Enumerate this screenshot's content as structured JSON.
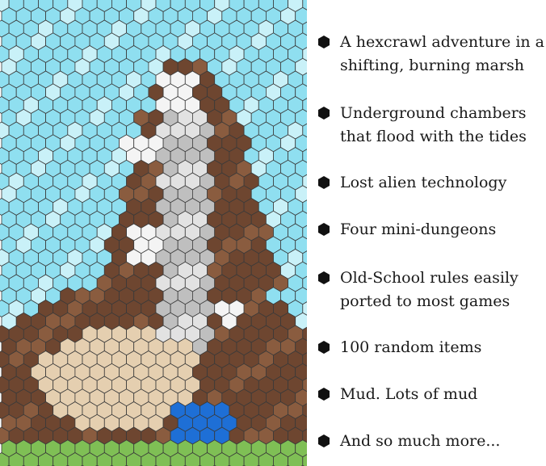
{
  "map": {
    "title": "",
    "colors": {
      "water": "#8fdff0",
      "water_light": "#c9f1f8",
      "mud": "#6e4630",
      "mud_light": "#8a5c3f",
      "rock": "#bfbfbf",
      "rock_light": "#e2e2e2",
      "white": "#f4f4f4",
      "sand": "#e5cfb0",
      "blue": "#1e6fd6",
      "grass": "#7fbf55",
      "outline": "#3a3a3a"
    },
    "icons": [
      "hex-grid-map-icon",
      "tide-pool-icon",
      "sand-dune-icon"
    ]
  },
  "features": [
    {
      "lines": [
        "A hexcrawl adventure in a",
        "shifting, burning marsh"
      ]
    },
    {
      "lines": [
        "Underground chambers",
        "that flood with the tides"
      ]
    },
    {
      "lines": [
        "Lost alien technology"
      ]
    },
    {
      "lines": [
        "Four mini-dungeons"
      ]
    },
    {
      "lines": [
        "Old-School rules easily",
        "ported to most games"
      ]
    },
    {
      "lines": [
        "100 random items"
      ]
    },
    {
      "lines": [
        "Mud. Lots of mud"
      ]
    },
    {
      "lines": [
        "And so much more..."
      ]
    }
  ]
}
